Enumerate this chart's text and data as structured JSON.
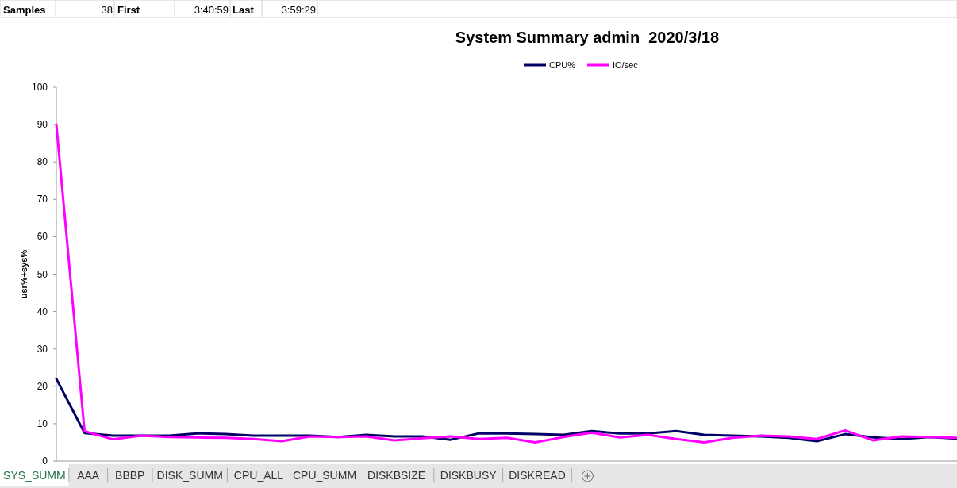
{
  "chart_data": {
    "type": "line",
    "title": "System Summary admin  2020/3/18",
    "ylabel": "usr%+sys%",
    "categories": [
      null,
      null,
      null,
      null,
      null,
      null,
      null,
      null,
      null,
      null,
      null,
      null,
      null,
      null,
      null,
      null,
      null,
      null,
      null,
      null,
      null,
      null,
      null,
      null,
      null,
      null,
      null,
      null,
      null,
      null,
      null,
      null,
      null
    ],
    "series": [
      {
        "name": "CPU%",
        "color": "#000066",
        "values": [
          22,
          7.5,
          6.8,
          6.8,
          6.8,
          7.4,
          7.2,
          6.8,
          6.8,
          6.8,
          6.4,
          7.0,
          6.6,
          6.6,
          5.7,
          7.4,
          7.4,
          7.2,
          7.0,
          8.0,
          7.4,
          7.4,
          8.0,
          7.0,
          6.8,
          6.6,
          6.2,
          5.3,
          7.2,
          6.3,
          5.9,
          6.4,
          6.0
        ]
      },
      {
        "name": "IO/sec",
        "color": "#ff00ff",
        "values": [
          90,
          8.0,
          5.8,
          6.8,
          6.4,
          6.3,
          6.2,
          5.9,
          5.3,
          6.6,
          6.4,
          6.6,
          5.5,
          6.1,
          6.6,
          5.9,
          6.2,
          5.0,
          6.4,
          7.6,
          6.3,
          7.0,
          5.9,
          5.0,
          6.2,
          6.8,
          6.6,
          5.9,
          8.2,
          5.5,
          6.6,
          6.4,
          6.2
        ]
      }
    ],
    "ylim": [
      0,
      100
    ],
    "yticks": [
      0,
      10,
      20,
      30,
      40,
      50,
      60,
      70,
      80,
      90,
      100
    ],
    "grid": false,
    "legend": "top",
    "line_style": "solid",
    "tick_labels": "y",
    "annotations": [
      "Samples",
      "38",
      "First",
      "3:40:59",
      "Last",
      "3:59:29",
      "SYS_SUMM",
      "AAA",
      "BBBP",
      "DISK_SUMM",
      "CPU_ALL",
      "CPU_SUMM",
      "DISKBSIZE",
      "DISKBUSY",
      "DISKREAD"
    ]
  }
}
